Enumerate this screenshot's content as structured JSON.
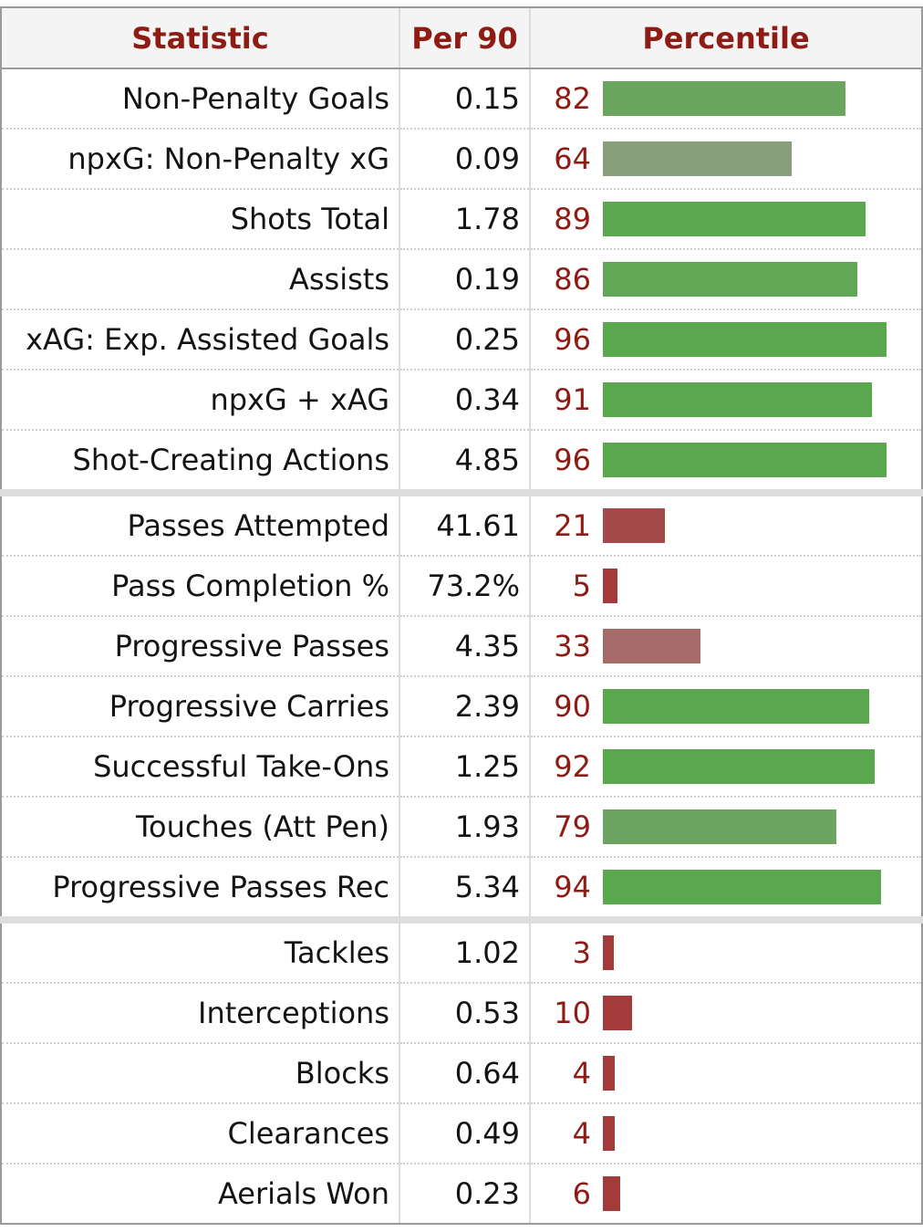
{
  "headers": {
    "statistic": "Statistic",
    "per90": "Per 90",
    "percentile": "Percentile"
  },
  "colors": {
    "header_text": "#8e1b14",
    "bar_high": "#5aa84e",
    "bar_low": "#a53a3a"
  },
  "chart_data": {
    "type": "table",
    "columns": [
      "Statistic",
      "Per 90",
      "Percentile"
    ],
    "percentile_range": [
      0,
      100
    ],
    "groups": [
      {
        "rows": [
          {
            "stat": "Non-Penalty Goals",
            "per90": "0.15",
            "percentile": 82
          },
          {
            "stat": "npxG: Non-Penalty xG",
            "per90": "0.09",
            "percentile": 64
          },
          {
            "stat": "Shots Total",
            "per90": "1.78",
            "percentile": 89
          },
          {
            "stat": "Assists",
            "per90": "0.19",
            "percentile": 86
          },
          {
            "stat": "xAG: Exp. Assisted Goals",
            "per90": "0.25",
            "percentile": 96
          },
          {
            "stat": "npxG + xAG",
            "per90": "0.34",
            "percentile": 91
          },
          {
            "stat": "Shot-Creating Actions",
            "per90": "4.85",
            "percentile": 96
          }
        ]
      },
      {
        "rows": [
          {
            "stat": "Passes Attempted",
            "per90": "41.61",
            "percentile": 21
          },
          {
            "stat": "Pass Completion %",
            "per90": "73.2%",
            "percentile": 5
          },
          {
            "stat": "Progressive Passes",
            "per90": "4.35",
            "percentile": 33
          },
          {
            "stat": "Progressive Carries",
            "per90": "2.39",
            "percentile": 90
          },
          {
            "stat": "Successful Take-Ons",
            "per90": "1.25",
            "percentile": 92
          },
          {
            "stat": "Touches (Att Pen)",
            "per90": "1.93",
            "percentile": 79
          },
          {
            "stat": "Progressive Passes Rec",
            "per90": "5.34",
            "percentile": 94
          }
        ]
      },
      {
        "rows": [
          {
            "stat": "Tackles",
            "per90": "1.02",
            "percentile": 3
          },
          {
            "stat": "Interceptions",
            "per90": "0.53",
            "percentile": 10
          },
          {
            "stat": "Blocks",
            "per90": "0.64",
            "percentile": 4
          },
          {
            "stat": "Clearances",
            "per90": "0.49",
            "percentile": 4
          },
          {
            "stat": "Aerials Won",
            "per90": "0.23",
            "percentile": 6
          }
        ]
      }
    ]
  }
}
